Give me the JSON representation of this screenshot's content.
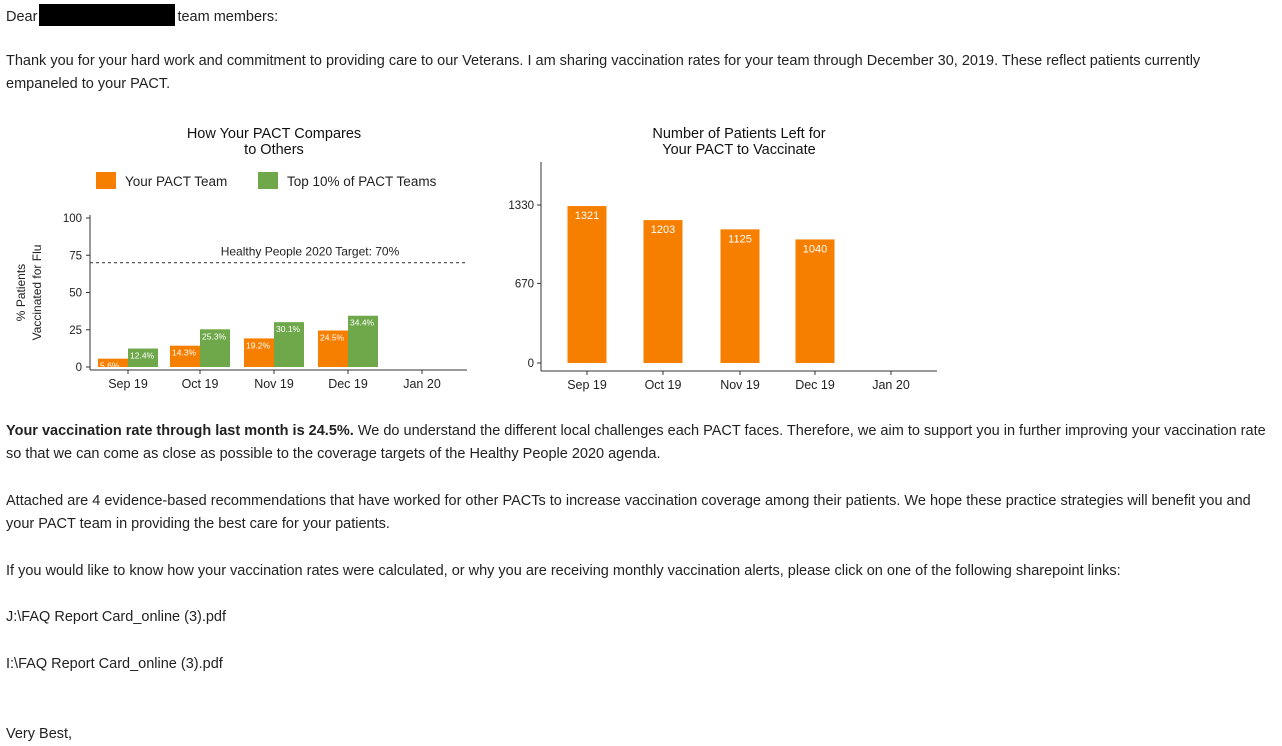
{
  "colors": {
    "orange": "#F77F00",
    "green": "#6FA84B",
    "text": "#222222",
    "redaction": "#000000"
  },
  "email": {
    "salutation_start": "Dear",
    "salutation_end": "team members:",
    "intro": "Thank you for your hard work and commitment to providing care to our Veterans. I am sharing vaccination rates for your team through December 30, 2019. These reflect patients currently empaneled to your PACT.",
    "rate_bold": "Your vaccination rate through last month is 24.5%.",
    "rate_rest": " We do understand the different local challenges each PACT faces. Therefore, we aim to support you in further improving your vaccination rate so that we can come as close as possible to the coverage targets of the Healthy People 2020 agenda.",
    "attached": "Attached are 4 evidence-based recommendations that have worked for other PACTs to increase vaccination coverage among their patients. We hope these practice strategies will benefit you and your PACT team in providing the best care for your patients.",
    "faq_intro": "If you would like to know how your vaccination rates were calculated, or why you are receiving monthly vaccination alerts, please click on one of the following sharepoint links:",
    "link1": "J:\\FAQ Report Card_online (3).pdf",
    "link2": "I:\\FAQ Report Card_online (3).pdf",
    "closing": "Very Best,"
  },
  "chart_data": [
    {
      "type": "bar",
      "title": "How Your PACT Compares to Others",
      "title_lines": [
        "How Your PACT Compares",
        "to Others"
      ],
      "ylabel": "% Patients Vaccinated for Flu",
      "ylabel_lines": [
        "% Patients",
        "Vaccinated for Flu"
      ],
      "categories": [
        "Sep 19",
        "Oct 19",
        "Nov 19",
        "Dec 19",
        "Jan 20"
      ],
      "series": [
        {
          "name": "Your PACT Team",
          "color": "#F77F00",
          "values": [
            5.6,
            14.3,
            19.2,
            24.5,
            null
          ],
          "labels": [
            "5.6%",
            "14.3%",
            "19.2%",
            "24.5%",
            ""
          ]
        },
        {
          "name": "Top 10% of PACT Teams",
          "color": "#6FA84B",
          "values": [
            12.4,
            25.3,
            30.1,
            34.4,
            null
          ],
          "labels": [
            "12.4%",
            "25.3%",
            "30.1%",
            "34.4%",
            ""
          ]
        }
      ],
      "yticks": [
        0,
        25,
        50,
        75,
        100
      ],
      "ylim": [
        0,
        100
      ],
      "reference_line": {
        "value": 70,
        "label": "Healthy People 2020 Target: 70%",
        "style": "dashed"
      },
      "legend": "top",
      "grid": false
    },
    {
      "type": "bar",
      "title": "Number of Patients Left for Your PACT to Vaccinate",
      "title_lines": [
        "Number of Patients Left for",
        "Your PACT to Vaccinate"
      ],
      "ylabel": "",
      "categories": [
        "Sep 19",
        "Oct 19",
        "Nov 19",
        "Dec 19",
        "Jan 20"
      ],
      "series": [
        {
          "color": "#F77F00",
          "values": [
            1321,
            1203,
            1125,
            1040,
            null
          ],
          "labels": [
            "1321",
            "1203",
            "1125",
            "1040",
            ""
          ]
        }
      ],
      "yticks": [
        0,
        670,
        1330
      ],
      "ylim": [
        0,
        1330
      ],
      "legend": "none",
      "grid": false
    }
  ]
}
